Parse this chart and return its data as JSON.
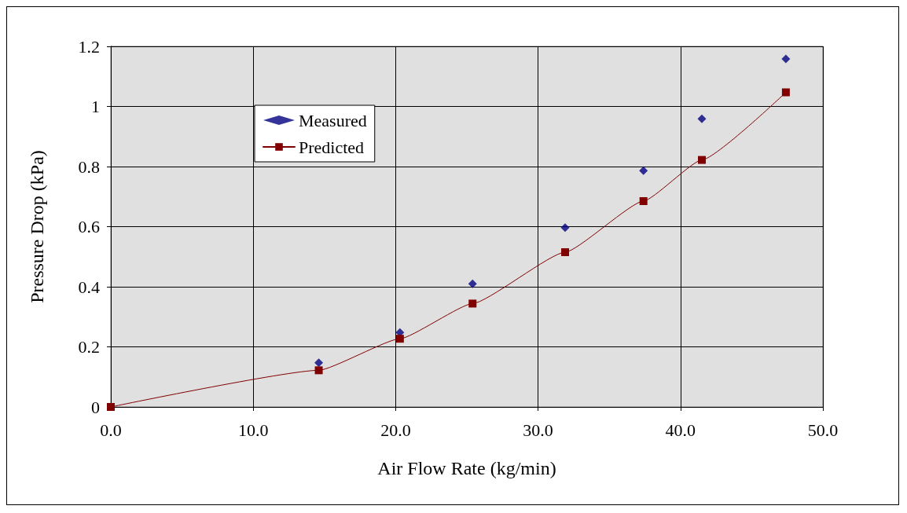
{
  "chart_data": {
    "type": "scatter",
    "xlabel": "Air Flow Rate (kg/min)",
    "ylabel": "Pressure Drop (kPa)",
    "xlim": [
      0,
      50
    ],
    "xticks": [
      {
        "value": 0,
        "label": "0.0"
      },
      {
        "value": 10,
        "label": "10.0"
      },
      {
        "value": 20,
        "label": "20.0"
      },
      {
        "value": 30,
        "label": "30.0"
      },
      {
        "value": 40,
        "label": "40.0"
      },
      {
        "value": 50,
        "label": "50.0"
      }
    ],
    "ylim": [
      0,
      1.2
    ],
    "yticks": [
      0,
      0.2,
      0.4,
      0.6,
      0.8,
      1,
      1.2
    ],
    "grid": true,
    "legend": "top left",
    "series": [
      {
        "name": "Measured",
        "marker": "diamond",
        "color": "#000080",
        "x": [
          14.6,
          20.3,
          25.4,
          31.9,
          37.4,
          41.5,
          47.4
        ],
        "values": [
          0.147,
          0.248,
          0.41,
          0.597,
          0.786,
          0.959,
          1.158
        ]
      },
      {
        "name": "Predicted",
        "type": "line",
        "marker": "square",
        "line_style": "solid",
        "color": "#800000",
        "x": [
          0,
          14.6,
          20.3,
          25.4,
          31.9,
          37.4,
          41.5,
          47.4
        ],
        "values": [
          0,
          0.122,
          0.227,
          0.344,
          0.515,
          0.685,
          0.822,
          1.047
        ]
      }
    ]
  }
}
